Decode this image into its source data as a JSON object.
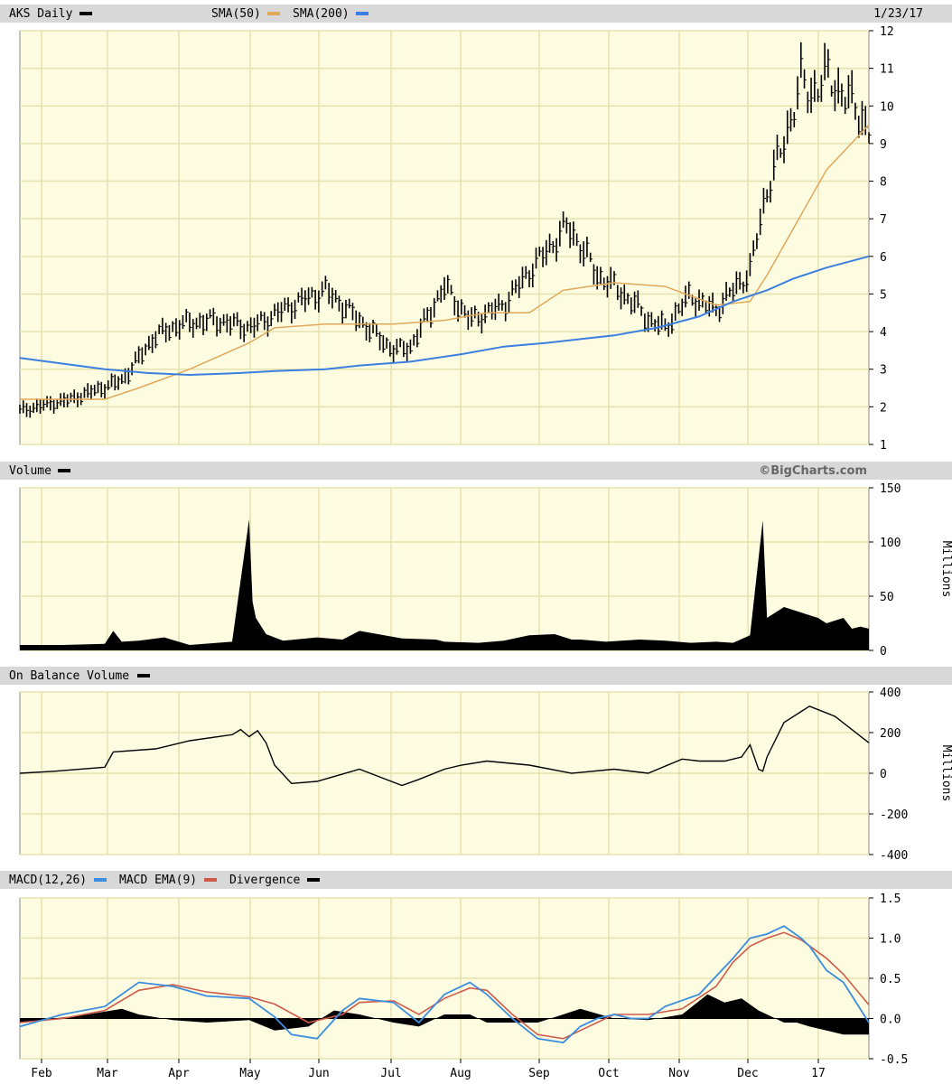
{
  "chart_data": [
    {
      "panel": "price",
      "type": "line",
      "title": "AKS Daily",
      "date": "1/23/17",
      "legend": [
        {
          "label": "SMA(50)",
          "color": "#e0a85a"
        },
        {
          "label": "SMA(200)",
          "color": "#3b7fe0"
        }
      ],
      "ylim": [
        1,
        12
      ],
      "y_ticks": [
        "1",
        "2",
        "3",
        "4",
        "5",
        "6",
        "7",
        "8",
        "9",
        "10",
        "11",
        "12"
      ],
      "series": [
        {
          "name": "AKS Daily",
          "color": "#000000",
          "style": "bars",
          "x": [
            0,
            6,
            12,
            16,
            19,
            23,
            27.2,
            32,
            36,
            40,
            44,
            46,
            47,
            50,
            51,
            53,
            57,
            60,
            64.5,
            66,
            68,
            70,
            73,
            74,
            76,
            79,
            80.5,
            82,
            86,
            88,
            90,
            92,
            93,
            95,
            99,
            100
          ],
          "values": [
            1.9,
            2.2,
            2.7,
            3.9,
            4.2,
            4.3,
            4.1,
            4.7,
            5.1,
            4.3,
            3.5,
            3.6,
            4.0,
            5.2,
            4.9,
            4.3,
            4.7,
            5.6,
            6.8,
            6.3,
            5.5,
            5.2,
            4.6,
            4.3,
            4.1,
            5.0,
            4.7,
            4.6,
            5.6,
            7.8,
            9.0,
            10.7,
            10.3,
            10.8,
            9.8,
            9.3
          ]
        },
        {
          "name": "SMA(50)",
          "color": "#e0a85a",
          "x": [
            0,
            10,
            14,
            20,
            27,
            30,
            36,
            44,
            50,
            55,
            60,
            64,
            70,
            76,
            82,
            86,
            88,
            91,
            95,
            100
          ],
          "values": [
            2.2,
            2.2,
            2.5,
            3.0,
            3.7,
            4.1,
            4.2,
            4.2,
            4.3,
            4.5,
            4.5,
            5.1,
            5.3,
            5.2,
            4.7,
            4.8,
            5.5,
            6.7,
            8.3,
            9.5
          ]
        },
        {
          "name": "SMA(200)",
          "color": "#3b7fe0",
          "x": [
            0,
            10,
            15,
            20,
            26,
            30,
            36,
            40,
            46,
            52,
            57,
            62,
            66,
            70,
            75,
            80,
            84,
            88,
            91,
            95,
            100
          ],
          "values": [
            3.3,
            3.0,
            2.9,
            2.85,
            2.9,
            2.95,
            3.0,
            3.1,
            3.2,
            3.4,
            3.6,
            3.7,
            3.8,
            3.9,
            4.1,
            4.4,
            4.8,
            5.1,
            5.4,
            5.7,
            6.0
          ]
        }
      ]
    },
    {
      "panel": "volume",
      "type": "area",
      "title": "Volume",
      "copyright": "©BigCharts.com",
      "ylim": [
        0,
        150
      ],
      "y_ticks": [
        "0",
        "50",
        "100",
        "150"
      ],
      "unit_label": "Millions",
      "series": [
        {
          "name": "Volume",
          "color": "#000000",
          "x": [
            0,
            5,
            10,
            11,
            12,
            14,
            17,
            20,
            25,
            27,
            27.4,
            27.8,
            29,
            31,
            35,
            38,
            40,
            45,
            49,
            50,
            54,
            57,
            60,
            63,
            65,
            66,
            69,
            73,
            76,
            79,
            82,
            84,
            86,
            87.5,
            88,
            90,
            92,
            94,
            95,
            97,
            98,
            99,
            100
          ],
          "values": [
            5,
            5,
            6,
            18,
            8,
            9,
            12,
            5,
            8,
            121,
            45,
            30,
            15,
            9,
            12,
            10,
            18,
            11,
            10,
            8,
            7,
            9,
            14,
            15,
            10,
            10,
            8,
            10,
            9,
            7,
            8,
            7,
            14,
            120,
            30,
            40,
            35,
            30,
            25,
            30,
            20,
            22,
            20
          ]
        }
      ]
    },
    {
      "panel": "obv",
      "type": "line",
      "title": "On Balance Volume",
      "ylim": [
        -400,
        400
      ],
      "y_ticks": [
        "-400",
        "-200",
        "0",
        "200",
        "400"
      ],
      "unit_label": "Millions",
      "series": [
        {
          "name": "On Balance Volume",
          "color": "#000000",
          "x": [
            0,
            4,
            10,
            11,
            16,
            20,
            25,
            26,
            27,
            28,
            29,
            30,
            32,
            35,
            40,
            45,
            47,
            50,
            52,
            55,
            60,
            65,
            70,
            74,
            78,
            80,
            83,
            85,
            86,
            87,
            87.5,
            88,
            90,
            93,
            96,
            100
          ],
          "values": [
            0,
            10,
            30,
            105,
            120,
            160,
            190,
            215,
            180,
            210,
            150,
            40,
            -50,
            -40,
            20,
            -60,
            -30,
            20,
            40,
            60,
            40,
            0,
            20,
            0,
            70,
            60,
            60,
            80,
            140,
            20,
            10,
            80,
            250,
            330,
            280,
            150
          ]
        }
      ]
    },
    {
      "panel": "macd",
      "type": "line",
      "title": "MACD(12,26)",
      "ylim": [
        -0.5,
        1.5
      ],
      "y_ticks": [
        "-0.5",
        "0.0",
        "0.5",
        "1.0",
        "1.5"
      ],
      "legend": [
        {
          "label": "MACD(12,26)",
          "color": "#3b8de0"
        },
        {
          "label": "MACD EMA(9)",
          "color": "#d05a4a"
        },
        {
          "label": "Divergence",
          "color": "#000000"
        }
      ],
      "x_ticks": [
        "Feb",
        "Mar",
        "Apr",
        "May",
        "Jun",
        "Jul",
        "Aug",
        "Sep",
        "Oct",
        "Nov",
        "Dec",
        "17"
      ],
      "series": [
        {
          "name": "MACD(12,26)",
          "color": "#3b8de0",
          "x": [
            0,
            5,
            10,
            12,
            14,
            18,
            22,
            27,
            30,
            32,
            35,
            38,
            40,
            44,
            47,
            50,
            53,
            55,
            58,
            61,
            64,
            66,
            68,
            70,
            72,
            74,
            76,
            80,
            84,
            86,
            88,
            90,
            92,
            93,
            95,
            97,
            100
          ],
          "values": [
            -0.1,
            0.05,
            0.15,
            0.3,
            0.45,
            0.4,
            0.28,
            0.25,
            0.02,
            -0.2,
            -0.25,
            0.1,
            0.25,
            0.2,
            -0.05,
            0.3,
            0.45,
            0.3,
            0.0,
            -0.25,
            -0.3,
            -0.1,
            0.0,
            0.05,
            0.0,
            0.0,
            0.15,
            0.3,
            0.75,
            1.0,
            1.05,
            1.15,
            1.0,
            0.9,
            0.6,
            0.45,
            -0.05
          ]
        },
        {
          "name": "MACD EMA(9)",
          "color": "#d05a4a",
          "x": [
            0,
            5,
            10,
            14,
            18,
            22,
            27,
            30,
            34,
            38,
            40,
            44,
            47,
            50,
            53,
            55,
            58,
            61,
            64,
            66,
            70,
            74,
            78,
            82,
            84,
            86,
            88,
            90,
            92,
            95,
            97,
            100
          ],
          "values": [
            -0.05,
            0.0,
            0.1,
            0.35,
            0.42,
            0.33,
            0.27,
            0.18,
            -0.05,
            0.05,
            0.2,
            0.22,
            0.05,
            0.25,
            0.38,
            0.35,
            0.05,
            -0.2,
            -0.25,
            -0.15,
            0.05,
            0.05,
            0.12,
            0.4,
            0.7,
            0.9,
            1.0,
            1.07,
            0.98,
            0.75,
            0.55,
            0.17
          ]
        },
        {
          "name": "Divergence",
          "color": "#000000",
          "style": "area",
          "x": [
            0,
            8,
            12,
            14,
            18,
            22,
            27,
            30,
            34,
            37,
            40,
            44,
            47,
            50,
            53,
            55,
            58,
            61,
            64,
            66,
            70,
            74,
            78,
            81,
            83,
            85,
            87,
            88,
            90,
            91.5,
            93,
            95,
            97,
            100
          ],
          "values": [
            -0.05,
            0.05,
            0.12,
            0.05,
            -0.02,
            -0.05,
            -0.02,
            -0.15,
            -0.1,
            0.1,
            0.05,
            -0.05,
            -0.1,
            0.05,
            0.05,
            -0.05,
            -0.05,
            -0.05,
            0.05,
            0.12,
            0.0,
            -0.02,
            0.05,
            0.3,
            0.2,
            0.25,
            0.1,
            0.05,
            -0.05,
            -0.05,
            -0.1,
            -0.15,
            -0.2,
            -0.2
          ]
        }
      ]
    }
  ]
}
